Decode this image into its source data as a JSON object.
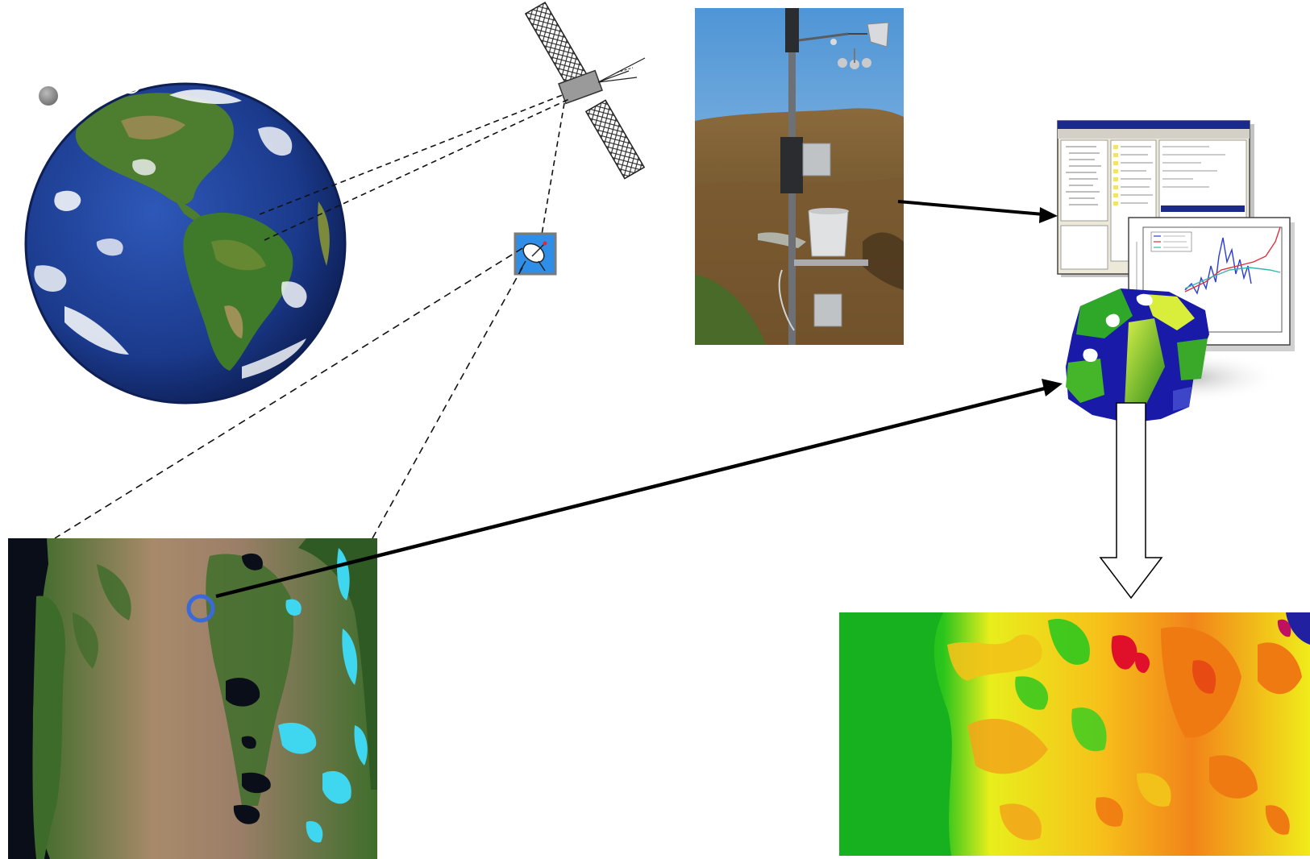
{
  "diagram": {
    "nodes": [
      {
        "id": "earth",
        "label": "",
        "icon": "earth-globe-icon"
      },
      {
        "id": "moon",
        "label": "",
        "icon": "moon-icon"
      },
      {
        "id": "satellite",
        "label": "",
        "icon": "satellite-icon"
      },
      {
        "id": "ground-station",
        "label": "",
        "icon": "satellite-dish-icon"
      },
      {
        "id": "weather-station",
        "label": "",
        "icon": "weather-station-photo"
      },
      {
        "id": "software",
        "label": "",
        "icon": "software-windows-icon"
      },
      {
        "id": "model-3d",
        "label": "",
        "icon": "3d-model-icon"
      },
      {
        "id": "satellite-image",
        "label": "",
        "icon": "landsat-image"
      },
      {
        "id": "output-map",
        "label": "",
        "icon": "heat-map-image"
      }
    ],
    "edges": [
      {
        "from": "earth",
        "to": "satellite",
        "style": "dashed"
      },
      {
        "from": "satellite",
        "to": "ground-station",
        "style": "dashed"
      },
      {
        "from": "ground-station",
        "to": "satellite-image",
        "style": "dashed"
      },
      {
        "from": "weather-station",
        "to": "software",
        "style": "solid-arrow"
      },
      {
        "from": "satellite-image",
        "to": "model-3d",
        "style": "solid-arrow"
      },
      {
        "from": "model-3d",
        "to": "output-map",
        "style": "block-arrow"
      }
    ],
    "colors": {
      "ocean": "#1b3a8c",
      "land_green": "#3f7a2a",
      "sky": "#6aa6d8",
      "snow": "#3fd6f0",
      "heat_green": "#17b01e",
      "heat_yellow": "#f0ec1a",
      "heat_orange": "#f07a12",
      "heat_red": "#e0102a",
      "window_title": "#1a2a8c"
    }
  }
}
